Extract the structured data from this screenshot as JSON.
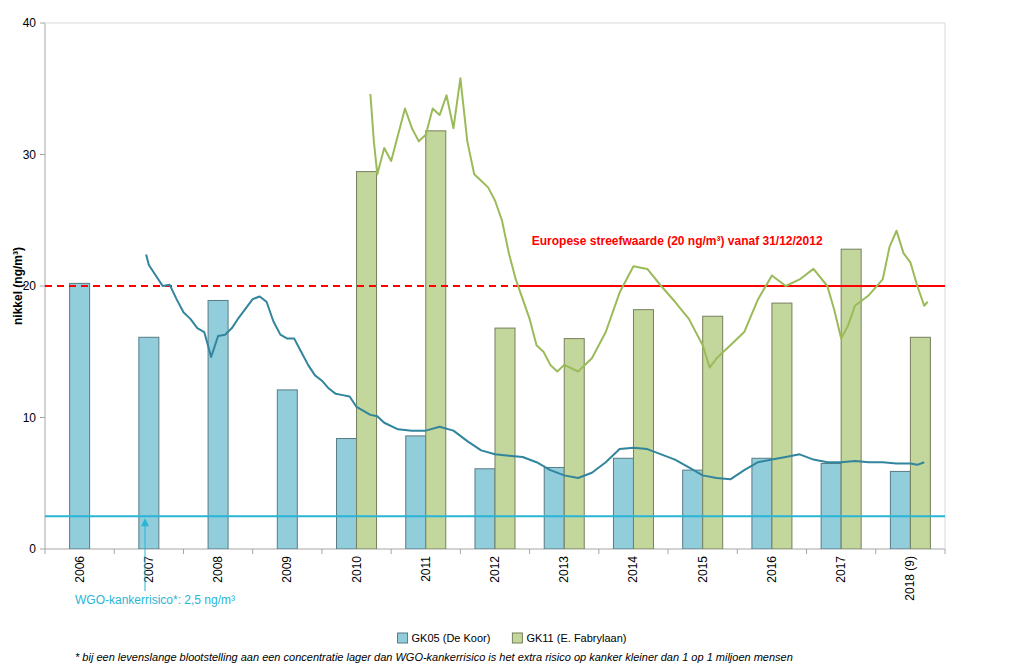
{
  "chart_data": {
    "type": "bar",
    "y_label": "nikkel (ng/m³)",
    "categories": [
      "2006",
      "2007",
      "2008",
      "2009",
      "2010",
      "2011",
      "2012",
      "2013",
      "2014",
      "2015",
      "2016",
      "2017",
      "2018 (9)"
    ],
    "ylim": [
      0,
      40
    ],
    "yticks": [
      0,
      10,
      20,
      30,
      40
    ],
    "grid": false,
    "legend": "bottom",
    "series": [
      {
        "name": "GK05 (De Koor)",
        "type": "bar",
        "color": "#92cddc",
        "values": [
          20.2,
          16.1,
          18.9,
          12.1,
          8.4,
          8.6,
          6.1,
          6.2,
          6.9,
          6.0,
          6.9,
          6.5,
          5.9
        ]
      },
      {
        "name": "GK11 (E. Fabrylaan)",
        "type": "bar",
        "color": "#c3d69b",
        "values": [
          null,
          null,
          null,
          null,
          28.7,
          31.8,
          16.8,
          16.0,
          18.2,
          17.7,
          18.7,
          22.8,
          16.1
        ]
      },
      {
        "type": "line",
        "color": "#31859c",
        "x": [
          2006.96,
          2007.0,
          2007.1,
          2007.2,
          2007.3,
          2007.4,
          2007.5,
          2007.6,
          2007.7,
          2007.8,
          2007.9,
          2008.0,
          2008.1,
          2008.2,
          2008.3,
          2008.4,
          2008.5,
          2008.6,
          2008.7,
          2008.8,
          2008.9,
          2009.0,
          2009.1,
          2009.2,
          2009.3,
          2009.4,
          2009.5,
          2009.6,
          2009.7,
          2009.8,
          2009.9,
          2010.0,
          2010.1,
          2010.2,
          2010.3,
          2010.4,
          2010.6,
          2010.8,
          2011.0,
          2011.2,
          2011.4,
          2011.6,
          2011.8,
          2012.0,
          2012.2,
          2012.4,
          2012.6,
          2012.8,
          2013.0,
          2013.2,
          2013.4,
          2013.6,
          2013.8,
          2014.0,
          2014.2,
          2014.4,
          2014.6,
          2014.8,
          2015.0,
          2015.2,
          2015.4,
          2015.6,
          2015.8,
          2016.0,
          2016.2,
          2016.4,
          2016.6,
          2016.8,
          2017.0,
          2017.2,
          2017.4,
          2017.6,
          2017.8,
          2018.0,
          2018.1,
          2018.2
        ],
        "values": [
          22.4,
          21.6,
          20.8,
          20.0,
          20.1,
          19.0,
          18.0,
          17.5,
          16.8,
          16.5,
          14.6,
          16.2,
          16.3,
          16.8,
          17.6,
          18.3,
          19.0,
          19.2,
          18.8,
          17.3,
          16.3,
          16.0,
          16.0,
          15.0,
          14.0,
          13.2,
          12.8,
          12.2,
          11.8,
          11.7,
          11.6,
          10.8,
          10.5,
          10.2,
          10.1,
          9.6,
          9.1,
          9.0,
          9.0,
          9.3,
          9.0,
          8.2,
          7.5,
          7.2,
          7.1,
          7.0,
          6.6,
          6.0,
          5.6,
          5.4,
          5.8,
          6.6,
          7.6,
          7.7,
          7.6,
          7.2,
          6.8,
          6.2,
          5.6,
          5.4,
          5.3,
          6.0,
          6.6,
          6.8,
          7.0,
          7.2,
          6.8,
          6.6,
          6.6,
          6.7,
          6.6,
          6.6,
          6.5,
          6.5,
          6.4,
          6.6
        ]
      },
      {
        "type": "line",
        "color": "#9bbb59",
        "x": [
          2010.2,
          2010.25,
          2010.3,
          2010.4,
          2010.5,
          2010.6,
          2010.7,
          2010.8,
          2010.9,
          2011.0,
          2011.1,
          2011.2,
          2011.3,
          2011.4,
          2011.5,
          2011.6,
          2011.7,
          2011.8,
          2011.9,
          2012.0,
          2012.1,
          2012.2,
          2012.3,
          2012.4,
          2012.5,
          2012.6,
          2012.7,
          2012.8,
          2012.9,
          2013.0,
          2013.2,
          2013.4,
          2013.6,
          2013.8,
          2014.0,
          2014.2,
          2014.4,
          2014.6,
          2014.8,
          2015.0,
          2015.1,
          2015.2,
          2015.4,
          2015.6,
          2015.8,
          2016.0,
          2016.2,
          2016.4,
          2016.6,
          2016.8,
          2016.9,
          2017.0,
          2017.1,
          2017.2,
          2017.4,
          2017.6,
          2017.7,
          2017.8,
          2017.9,
          2018.0,
          2018.1,
          2018.2,
          2018.25
        ],
        "values": [
          34.6,
          31.0,
          28.5,
          30.5,
          29.5,
          31.5,
          33.5,
          32.0,
          31.0,
          31.5,
          33.5,
          33.0,
          34.5,
          32.0,
          35.8,
          31.0,
          28.5,
          28.0,
          27.5,
          26.5,
          25.0,
          22.5,
          20.5,
          19.0,
          17.5,
          15.5,
          15.0,
          14.0,
          13.5,
          14.0,
          13.5,
          14.5,
          16.5,
          19.5,
          21.5,
          21.3,
          20.0,
          18.8,
          17.5,
          15.5,
          13.8,
          14.5,
          15.5,
          16.5,
          19.0,
          20.8,
          20.0,
          20.5,
          21.3,
          20.0,
          18.2,
          16.0,
          17.0,
          18.5,
          19.3,
          20.5,
          23.0,
          24.2,
          22.5,
          21.8,
          20.0,
          18.5,
          18.8
        ]
      }
    ],
    "reference_lines": [
      {
        "label": "Europese streefwaarde (20 ng/m³) vanaf 31/12/2012",
        "value": 20,
        "color": "#ff0000",
        "dashed_until": 2012.3
      },
      {
        "label": "WGO-kankerrisico*: 2,5 ng/m³",
        "value": 2.5,
        "color": "#29b5d6"
      }
    ],
    "footnote": "* bij een levenslange blootstelling aan een concentratie lager dan WGO-kankerrisico is het extra risico op kanker kleiner dan 1 op 1 miljoen mensen"
  }
}
